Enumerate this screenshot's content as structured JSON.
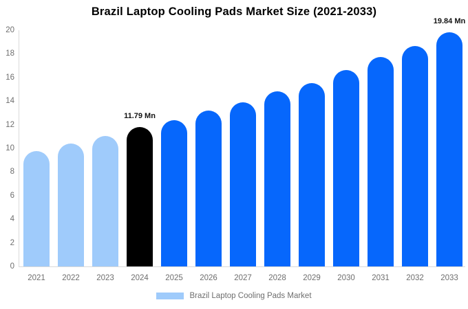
{
  "chart_data": {
    "type": "bar",
    "title": "Brazil Laptop Cooling Pads Market Size (2021-2033)",
    "xlabel": "",
    "ylabel": "",
    "unit": "Mn",
    "categories": [
      "2021",
      "2022",
      "2023",
      "2024",
      "2025",
      "2026",
      "2027",
      "2028",
      "2029",
      "2030",
      "2031",
      "2032",
      "2033"
    ],
    "values": [
      9.77,
      10.41,
      11.05,
      11.79,
      12.38,
      13.2,
      13.9,
      14.83,
      15.52,
      16.63,
      17.73,
      18.66,
      19.84
    ],
    "bar_color_keys": [
      "historical",
      "historical",
      "historical",
      "highlight",
      "forecast",
      "forecast",
      "forecast",
      "forecast",
      "forecast",
      "forecast",
      "forecast",
      "forecast",
      "forecast"
    ],
    "annotations": [
      {
        "index": 3,
        "text": "11.79 Mn"
      },
      {
        "index": 12,
        "text": "19.84 Mn"
      }
    ],
    "ylim": [
      0,
      20
    ],
    "yticks": [
      0,
      2,
      4,
      6,
      8,
      10,
      12,
      14,
      16,
      18,
      20
    ],
    "grid": false,
    "legend_position": "bottom"
  },
  "colors": {
    "historical": "#9fcbfb",
    "highlight": "#000000",
    "forecast": "#0667fc",
    "axis_line": "#d9d9d9",
    "tick_label": "#6e6e6e",
    "annotation_text": "#111111",
    "background": "#ffffff"
  },
  "legend": {
    "label": "Brazil Laptop Cooling Pads Market",
    "swatch_color": "#9fcbfb"
  }
}
